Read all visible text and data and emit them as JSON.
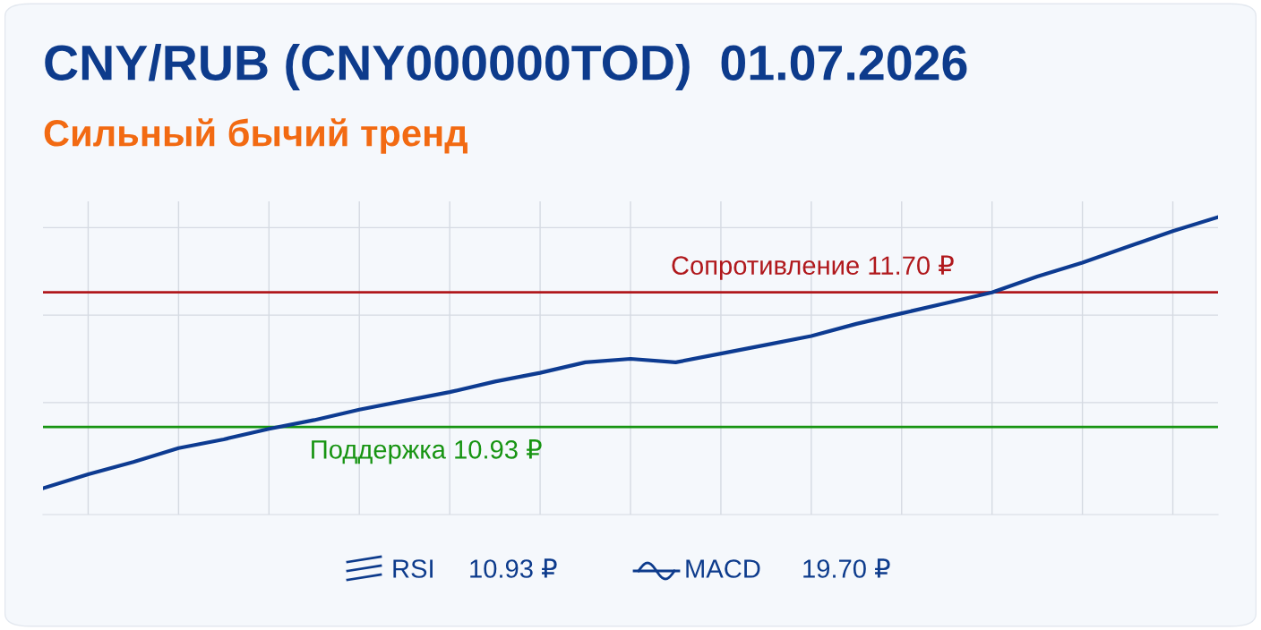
{
  "chart_data": {
    "type": "line",
    "title": "CNY/RUB (CNY000000TOD)  01.07.2026",
    "subtitle": "Сильный бычий тренд",
    "categories": [
      null,
      null,
      null,
      null,
      null,
      null,
      null,
      null,
      null,
      null,
      null,
      null,
      null,
      null,
      null,
      null,
      null,
      null,
      null,
      null,
      null,
      null,
      null,
      null,
      null,
      null,
      null
    ],
    "series": [
      {
        "color": "#0d3b91",
        "values": [
          10.58,
          10.66,
          10.73,
          10.81,
          10.86,
          10.92,
          10.97,
          11.03,
          11.08,
          11.13,
          11.19,
          11.24,
          11.3,
          11.32,
          11.3,
          11.35,
          11.4,
          11.45,
          11.52,
          11.58,
          11.64,
          11.7,
          11.79,
          11.87,
          11.96,
          12.05,
          12.13
        ]
      }
    ],
    "ylim": [
      10.43,
      12.22
    ],
    "yticks": [
      {
        "value": 11.07,
        "label": null
      },
      {
        "value": 11.57,
        "label": null
      },
      {
        "value": 12.07,
        "label": null
      }
    ],
    "grid": true,
    "marker": "none",
    "line_style": "solid",
    "ref_lines": [
      {
        "axis": "y",
        "value": 11.7,
        "label": "Сопротивление 11.70 ₽",
        "color": "#b0181c"
      },
      {
        "axis": "y",
        "value": 10.93,
        "label": "Поддержка 10.93 ₽",
        "color": "#179412"
      }
    ],
    "annotations": [
      "RSI",
      "10.93 ₽",
      "MACD",
      "19.70 ₽"
    ]
  }
}
